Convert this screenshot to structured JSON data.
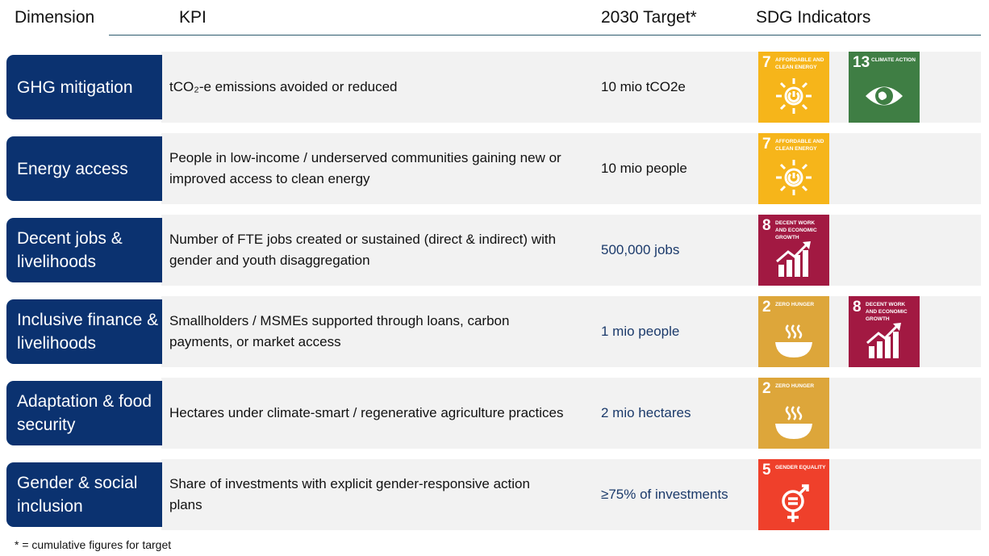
{
  "header": {
    "dimension": "Dimension",
    "kpi": "KPI",
    "target": "2030 Target*",
    "sdg": "SDG Indicators"
  },
  "rows": [
    {
      "dimension": "GHG mitigation",
      "kpi": "tCO₂-e emissions avoided or reduced",
      "target": "10 mio tCO2e",
      "sdgs": [
        {
          "number": "7",
          "label": "AFFORDABLE AND CLEAN ENERGY"
        },
        {
          "number": "13",
          "label": "CLIMATE ACTION"
        }
      ]
    },
    {
      "dimension": "Energy access",
      "kpi": "People in low-income / underserved communities gaining new or improved access to clean energy",
      "target": "10 mio people",
      "sdgs": [
        {
          "number": "7",
          "label": "AFFORDABLE AND CLEAN ENERGY"
        }
      ]
    },
    {
      "dimension": "Decent jobs & livelihoods",
      "kpi": "Number of FTE jobs created or sustained (direct & indirect) with gender and youth disaggregation",
      "target": "500,000 jobs",
      "sdgs": [
        {
          "number": "8",
          "label": "DECENT WORK AND ECONOMIC GROWTH"
        }
      ]
    },
    {
      "dimension": "Inclusive finance & livelihoods",
      "kpi": "Smallholders / MSMEs supported through loans, carbon payments, or market access",
      "target": "1 mio people",
      "sdgs": [
        {
          "number": "2",
          "label": "ZERO HUNGER"
        },
        {
          "number": "8",
          "label": "DECENT WORK AND ECONOMIC GROWTH"
        }
      ]
    },
    {
      "dimension": "Adaptation & food security",
      "kpi": "Hectares under climate-smart / regenerative agriculture practices",
      "target": "2 mio hectares",
      "sdgs": [
        {
          "number": "2",
          "label": "ZERO HUNGER"
        }
      ]
    },
    {
      "dimension": "Gender & social inclusion",
      "kpi": "Share of investments with explicit gender-responsive action plans",
      "target": "≥75% of investments",
      "sdgs": [
        {
          "number": "5",
          "label": "GENDER EQUALITY"
        }
      ]
    }
  ],
  "footnote": "* = cumulative figures for target"
}
